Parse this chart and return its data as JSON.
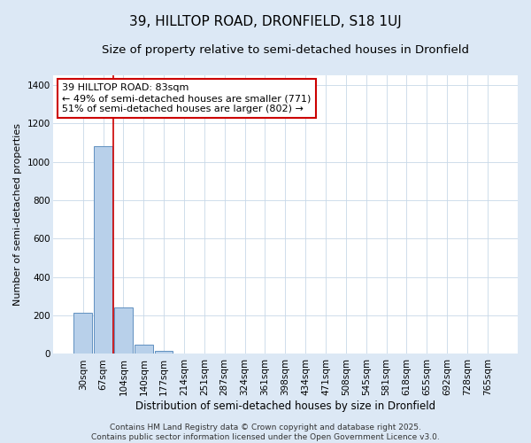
{
  "title": "39, HILLTOP ROAD, DRONFIELD, S18 1UJ",
  "subtitle": "Size of property relative to semi-detached houses in Dronfield",
  "xlabel": "Distribution of semi-detached houses by size in Dronfield",
  "ylabel": "Number of semi-detached properties",
  "categories": [
    "30sqm",
    "67sqm",
    "104sqm",
    "140sqm",
    "177sqm",
    "214sqm",
    "251sqm",
    "287sqm",
    "324sqm",
    "361sqm",
    "398sqm",
    "434sqm",
    "471sqm",
    "508sqm",
    "545sqm",
    "581sqm",
    "618sqm",
    "655sqm",
    "692sqm",
    "728sqm",
    "765sqm"
  ],
  "values": [
    215,
    1080,
    240,
    50,
    15,
    0,
    0,
    0,
    0,
    0,
    0,
    0,
    0,
    0,
    0,
    0,
    0,
    0,
    0,
    0,
    0
  ],
  "bar_color": "#b8d0ea",
  "bar_edge_color": "#6090c0",
  "background_color": "#dce8f5",
  "plot_bg_color": "#ffffff",
  "grid_color": "#c8d8e8",
  "vline_x": 1.5,
  "vline_color": "#cc0000",
  "annotation_text": "39 HILLTOP ROAD: 83sqm\n← 49% of semi-detached houses are smaller (771)\n51% of semi-detached houses are larger (802) →",
  "annotation_box_facecolor": "#ffffff",
  "annotation_box_edgecolor": "#cc0000",
  "ylim": [
    0,
    1450
  ],
  "yticks": [
    0,
    200,
    400,
    600,
    800,
    1000,
    1200,
    1400
  ],
  "footer_text": "Contains HM Land Registry data © Crown copyright and database right 2025.\nContains public sector information licensed under the Open Government Licence v3.0.",
  "title_fontsize": 11,
  "subtitle_fontsize": 9.5,
  "xlabel_fontsize": 8.5,
  "ylabel_fontsize": 8,
  "tick_fontsize": 7.5,
  "annotation_fontsize": 8,
  "footer_fontsize": 6.5
}
